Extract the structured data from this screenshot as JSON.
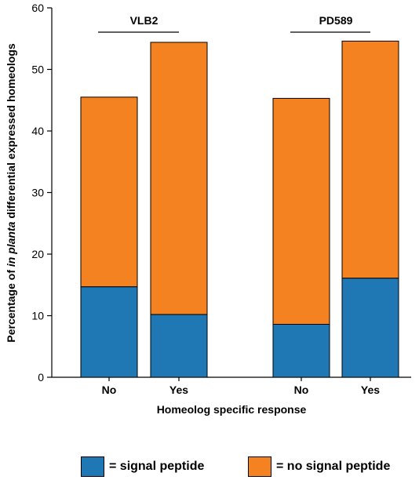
{
  "chart_data": {
    "type": "bar",
    "stacked": true,
    "groups": [
      {
        "name": "VLB2",
        "categories": [
          "No",
          "Yes"
        ]
      },
      {
        "name": "PD589",
        "categories": [
          "No",
          "Yes"
        ]
      }
    ],
    "categories": [
      "No",
      "Yes",
      "No",
      "Yes"
    ],
    "series": [
      {
        "name": "= signal peptide",
        "color": "#1f77b4",
        "values": [
          14.7,
          10.2,
          8.6,
          16.1
        ]
      },
      {
        "name": "= no signal peptide",
        "color": "#f58220",
        "values": [
          30.8,
          44.2,
          36.7,
          38.5
        ]
      }
    ],
    "totals": [
      45.5,
      54.4,
      45.3,
      54.6
    ],
    "xlabel": "Homeolog specific response",
    "ylabel": {
      "before": "Percentage of ",
      "italic": "in planta",
      "after": " differential expressed homeologs"
    },
    "ylim": [
      0,
      60
    ],
    "yticks": [
      "0",
      "10",
      "20",
      "30",
      "40",
      "50",
      "60"
    ],
    "grid": false,
    "legend_position": "bottom"
  },
  "legend": {
    "signal": {
      "label": "= signal peptide",
      "color": "#1f77b4"
    },
    "no_signal": {
      "label": "= no signal peptide",
      "color": "#f58220"
    }
  }
}
